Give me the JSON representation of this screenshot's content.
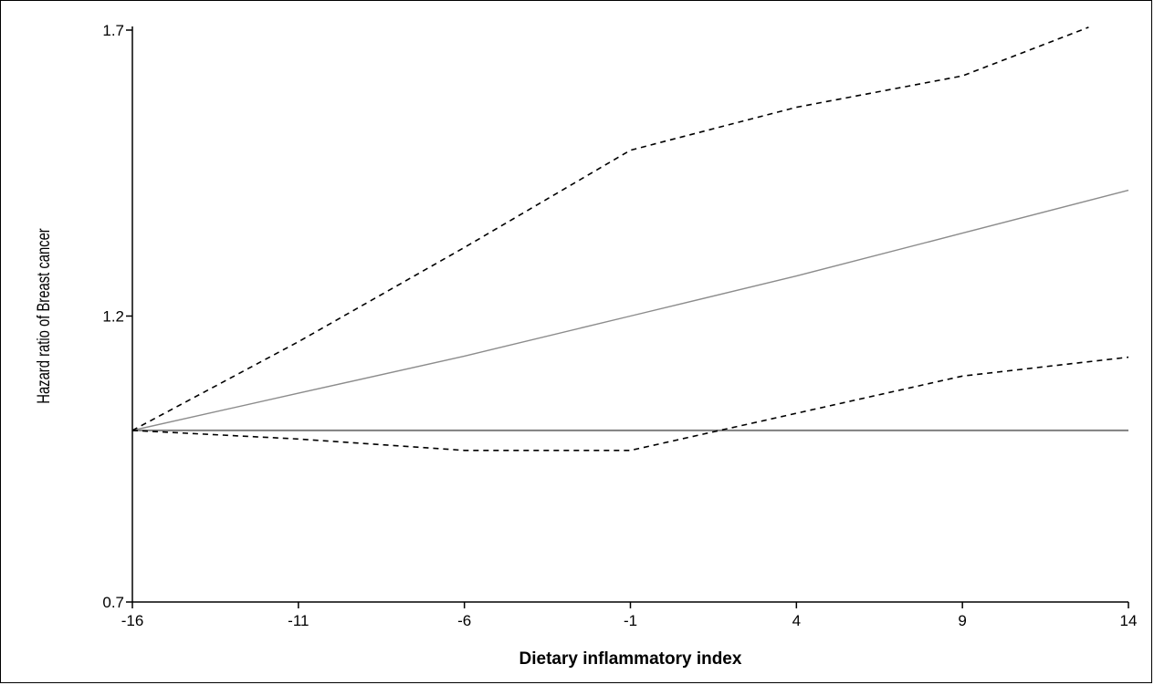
{
  "chart_data": {
    "type": "line",
    "title": "",
    "xlabel": "Dietary inflammatory index",
    "ylabel": "Hazard ratio of Breast cancer",
    "xlim": [
      -16,
      14
    ],
    "ylim": [
      0.7,
      1.7
    ],
    "xticks": [
      -16,
      -11,
      -6,
      -1,
      4,
      9,
      14
    ],
    "yticks": [
      0.7,
      1.2,
      1.7
    ],
    "ytick_labels": [
      "0.7",
      "1.2",
      "1.7"
    ],
    "grid": false,
    "legend": "none",
    "reference_line": 1.0,
    "series": [
      {
        "style": "solid",
        "color": "#8c8c8c",
        "x": [
          -16,
          -11,
          -6,
          -1,
          4,
          9,
          14
        ],
        "y": [
          1.0,
          1.065,
          1.13,
          1.2,
          1.27,
          1.345,
          1.42
        ]
      },
      {
        "style": "dashed",
        "color": "#000000",
        "x": [
          -16,
          -11,
          -6,
          -1,
          4,
          9,
          12.8
        ],
        "y": [
          1.0,
          1.155,
          1.32,
          1.49,
          1.565,
          1.62,
          1.705
        ]
      },
      {
        "style": "dashed",
        "color": "#000000",
        "x": [
          -16,
          -11,
          -6,
          -1,
          4,
          9,
          14
        ],
        "y": [
          1.0,
          0.985,
          0.965,
          0.965,
          1.03,
          1.095,
          1.128
        ]
      }
    ]
  }
}
